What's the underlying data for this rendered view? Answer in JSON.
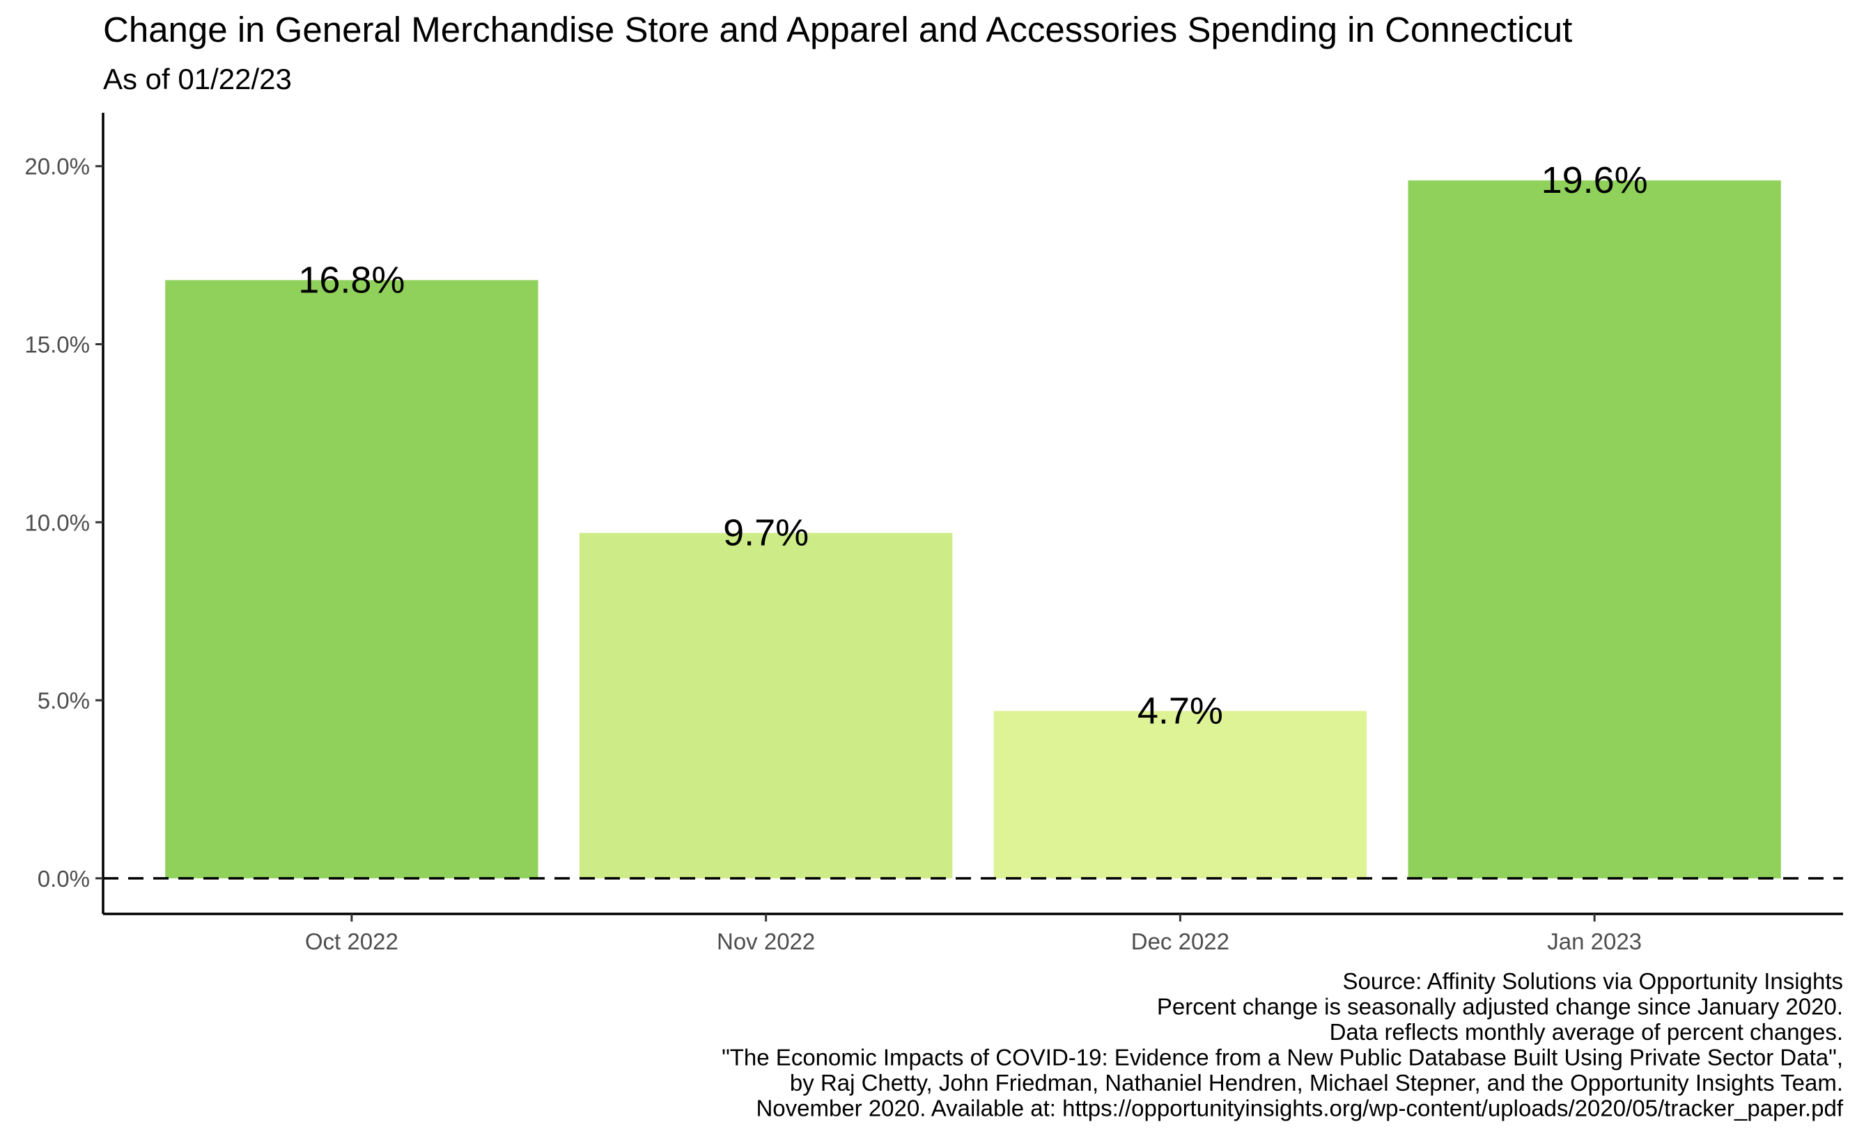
{
  "chart_data": {
    "type": "bar",
    "title": "Change in General Merchandise Store and Apparel and Accessories Spending in Connecticut",
    "subtitle": "As of 01/22/23",
    "categories": [
      "Oct 2022",
      "Nov 2022",
      "Dec 2022",
      "Jan 2023"
    ],
    "values": [
      16.8,
      9.7,
      4.7,
      19.6
    ],
    "data_labels": [
      "16.8%",
      "9.7%",
      "4.7%",
      "19.6%"
    ],
    "bar_colors": [
      "#8fd15a",
      "#cdeb87",
      "#def296",
      "#8fd15a"
    ],
    "xlabel": "",
    "ylabel": "",
    "ylim": [
      -1,
      21.5
    ],
    "yticks": [
      0,
      5,
      10,
      15,
      20
    ],
    "ytick_labels": [
      "0.0%",
      "5.0%",
      "10.0%",
      "15.0%",
      "20.0%"
    ],
    "reference_line": {
      "value": 0,
      "style": "dashed"
    },
    "grid": false,
    "legend": "none",
    "caption": [
      "Source: Affinity Solutions via Opportunity Insights",
      "Percent change is seasonally adjusted change since January 2020.",
      "Data reflects monthly average of percent changes.",
      "\"The Economic Impacts of COVID-19: Evidence from a New Public Database Built Using Private Sector Data\",",
      "by Raj Chetty, John Friedman, Nathaniel Hendren, Michael Stepner, and the Opportunity Insights Team.",
      "November 2020. Available at: https://opportunityinsights.org/wp-content/uploads/2020/05/tracker_paper.pdf"
    ]
  }
}
